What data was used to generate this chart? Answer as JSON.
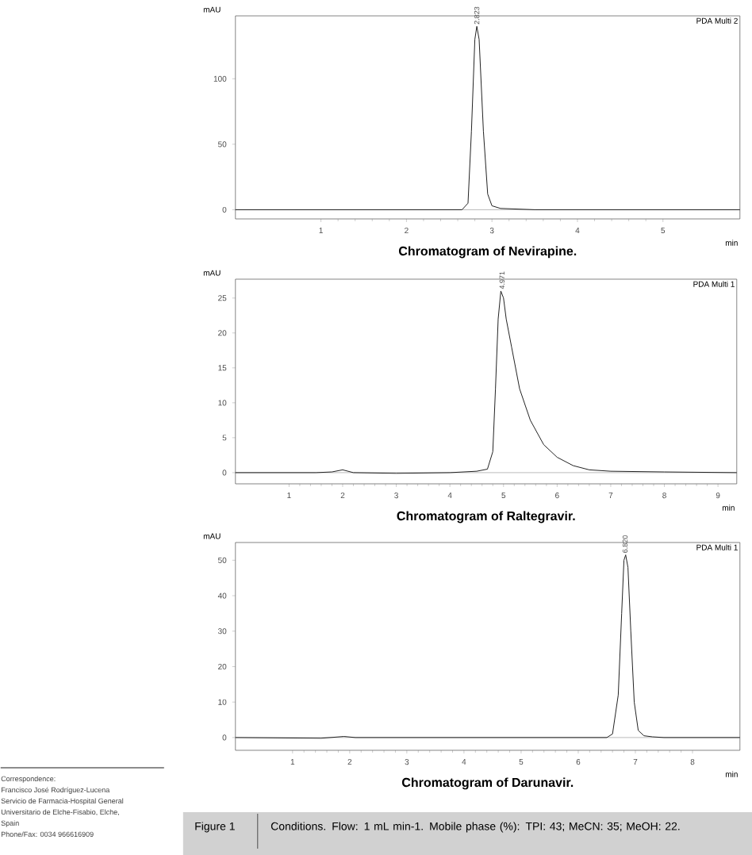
{
  "chart_data": [
    {
      "type": "line",
      "title": "Chromatogram of Nevirapine.",
      "xlabel": "min",
      "ylabel": "mAU",
      "xlim": [
        0,
        5.9
      ],
      "ylim": [
        -7,
        148
      ],
      "xticks": [
        1,
        2,
        3,
        4,
        5
      ],
      "yticks": [
        0,
        50,
        100
      ],
      "series": [
        {
          "color": "#222222",
          "x": [
            0,
            2.0,
            2.6,
            2.65,
            2.72,
            2.76,
            2.8,
            2.823,
            2.85,
            2.9,
            2.95,
            3.0,
            3.1,
            3.5,
            5.9
          ],
          "values": [
            0,
            0,
            0,
            0,
            5,
            60,
            130,
            140,
            130,
            60,
            12,
            3,
            1,
            0,
            0
          ]
        }
      ],
      "annotations": [
        "PDA Multi 2",
        {
          "text": "2.823",
          "x": 2.823,
          "y": 140
        }
      ]
    },
    {
      "type": "line",
      "title": "Chromatogram of Raltegravir.",
      "xlabel": "min",
      "ylabel": "mAU",
      "xlim": [
        0,
        9.35
      ],
      "ylim": [
        -1.6,
        27.7
      ],
      "xticks": [
        1,
        2,
        3,
        4,
        5,
        6,
        7,
        8,
        9
      ],
      "yticks": [
        0,
        5,
        10,
        15,
        20,
        25
      ],
      "series": [
        {
          "color": "#222222",
          "x": [
            0,
            1.5,
            1.8,
            2.0,
            2.2,
            3.0,
            4.0,
            4.5,
            4.7,
            4.8,
            4.85,
            4.9,
            4.95,
            5.0,
            5.05,
            5.15,
            5.3,
            5.5,
            5.75,
            6.0,
            6.3,
            6.6,
            7.0,
            8.0,
            9.35
          ],
          "values": [
            0,
            0,
            0.1,
            0.4,
            0,
            -0.1,
            0,
            0.2,
            0.5,
            3,
            12,
            22,
            26,
            25,
            22,
            18,
            12,
            7.5,
            4,
            2.2,
            1,
            0.4,
            0.2,
            0.1,
            0
          ]
        }
      ],
      "annotations": [
        "PDA Multi 1",
        {
          "text": "4.971",
          "x": 4.971,
          "y": 26
        }
      ]
    },
    {
      "type": "line",
      "title": "Chromatogram of Darunavir.",
      "xlabel": "min",
      "ylabel": "mAU",
      "xlim": [
        0,
        8.83
      ],
      "ylim": [
        -3.6,
        55
      ],
      "xticks": [
        1,
        2,
        3,
        4,
        5,
        6,
        7,
        8
      ],
      "yticks": [
        0,
        10,
        20,
        30,
        40,
        50
      ],
      "series": [
        {
          "color": "#222222",
          "x": [
            0,
            1.5,
            1.9,
            2.1,
            6.5,
            6.6,
            6.7,
            6.76,
            6.8,
            6.83,
            6.87,
            6.92,
            6.98,
            7.05,
            7.15,
            7.3,
            7.5,
            8.83
          ],
          "values": [
            0,
            -0.2,
            0.3,
            0,
            0,
            1,
            12,
            35,
            50,
            51.5,
            48,
            30,
            10,
            2,
            0.5,
            0.2,
            0,
            0
          ]
        }
      ],
      "annotations": [
        "PDA Multi 1",
        {
          "text": "6.820",
          "x": 6.82,
          "y": 51.5
        }
      ]
    },
    {
      "type": "other",
      "title": "Figure 1",
      "subtitle": "Conditions. Flow: 1 mL min-1. Mobile phase (%): TPI: 43; MeCN: 35; MeOH: 22.",
      "annotations": [
        "Correspondence:",
        "Francisco José Rodríguez-Lucena",
        "Servicio de Farmacia-Hospital General",
        "Universitario de Elche-Fisabio, Elche,",
        "Spain",
        "Phone/Fax: 0034 966616909"
      ]
    }
  ]
}
